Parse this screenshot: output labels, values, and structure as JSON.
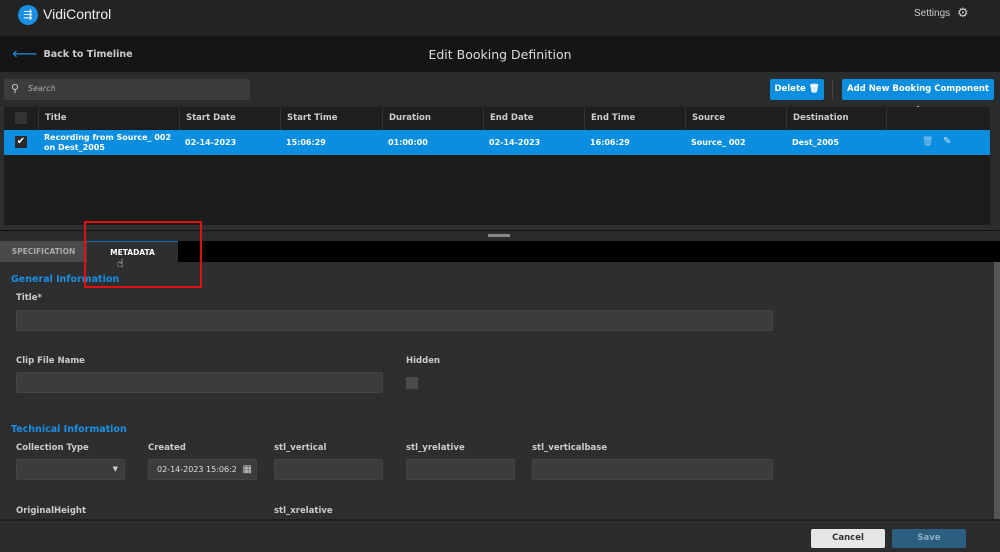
{
  "app": {
    "name": "VidiControl",
    "settings_label": "Settings"
  },
  "nav": {
    "back_label": "Back to Timeline",
    "page_title": "Edit Booking Definition"
  },
  "toolbar": {
    "search_placeholder": "Search",
    "delete_label": "Delete",
    "add_label": "Add New Booking Component"
  },
  "table": {
    "columns": [
      "Title",
      "Start Date",
      "Start Time",
      "Duration",
      "End Date",
      "End Time",
      "Source",
      "Destination"
    ],
    "rows": [
      {
        "selected": true,
        "cells": [
          "Recording from Source_ 002 on Dest_2005",
          "02-14-2023",
          "15:06:29",
          "01:00:00",
          "02-14-2023",
          "16:06:29",
          "Source_ 002",
          "Dest_2005"
        ]
      }
    ]
  },
  "tabs": [
    {
      "label": "SPECIFICATION",
      "active": false
    },
    {
      "label": "METADATA",
      "active": true
    }
  ],
  "form": {
    "general_heading": "General Information",
    "title_label": "Title*",
    "title_value": "",
    "clip_label": "Clip File Name",
    "clip_value": "",
    "hidden_label": "Hidden",
    "hidden_checked": false,
    "technical_heading": "Technical Information",
    "collection_label": "Collection Type",
    "collection_value": "",
    "created_label": "Created",
    "created_value": "02-14-2023 15:06:2",
    "stl_vertical_label": "stl_vertical",
    "stl_yrelative_label": "stl_yrelative",
    "stl_verticalbase_label": "stl_verticalbase",
    "original_height_label": "OriginalHeight",
    "stl_xrelative_label": "stl_xrelative"
  },
  "footer": {
    "cancel_label": "Cancel",
    "save_label": "Save"
  },
  "colors": {
    "accent": "#0b8ee0",
    "annotation": "#e01010"
  }
}
